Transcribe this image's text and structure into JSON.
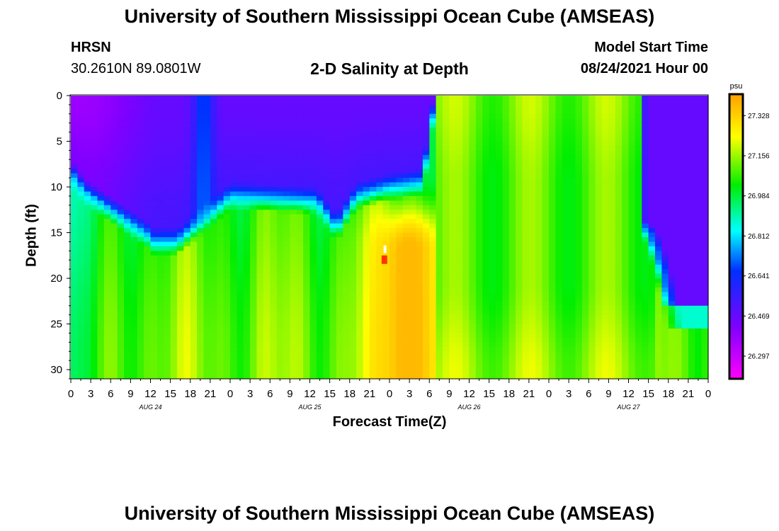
{
  "header": {
    "title": "University of Southern Mississippi Ocean Cube (AMSEAS)",
    "station": "HRSN",
    "coords": "30.2610N  89.0801W",
    "plot_title": "2-D Salinity at Depth",
    "model_start_label": "Model Start Time",
    "model_start_value": "08/24/2021 Hour 00"
  },
  "footer": {
    "title": "University of Southern Mississippi Ocean Cube (AMSEAS)"
  },
  "colors": {
    "scale": [
      "#ff00ff",
      "#8000ff",
      "#0030ff",
      "#00ffff",
      "#00ee00",
      "#ffff00",
      "#ffa000"
    ],
    "anomaly_red": "#ff3300"
  },
  "chart_data": {
    "type": "heatmap",
    "title": "2-D Salinity at Depth",
    "xlabel": "Forecast Time(Z)",
    "ylabel": "Depth (ft)",
    "x_hours_range": [
      0,
      96
    ],
    "ylim": [
      0,
      31
    ],
    "x_tick_labels": [
      "0",
      "3",
      "6",
      "9",
      "12",
      "15",
      "18",
      "21",
      "0",
      "3",
      "6",
      "9",
      "12",
      "15",
      "18",
      "21",
      "0",
      "3",
      "6",
      "9",
      "12",
      "15",
      "18",
      "21",
      "0",
      "3",
      "6",
      "9",
      "12",
      "15",
      "18",
      "21",
      "0"
    ],
    "day_labels": [
      "AUG 24",
      "AUG 25",
      "AUG 26",
      "AUG 27"
    ],
    "y_ticks": [
      0,
      5,
      10,
      15,
      20,
      25,
      30
    ],
    "colorbar": {
      "unit": "psu",
      "range": [
        26.2,
        27.42
      ],
      "ticks": [
        "27.328",
        "27.156",
        "26.984",
        "26.812",
        "26.641",
        "26.469",
        "26.297"
      ]
    },
    "zones": [
      {
        "color": "fresh (magenta/purple) surface layer",
        "hours": [
          0,
          55
        ],
        "depth": [
          0,
          17
        ]
      },
      {
        "color": "saline (orange) core",
        "hours": [
          45,
          60
        ],
        "depth": [
          12,
          31
        ]
      },
      {
        "color": "fresh (purple) layer",
        "hours": [
          88,
          96
        ],
        "depth": [
          0,
          24
        ]
      }
    ]
  }
}
